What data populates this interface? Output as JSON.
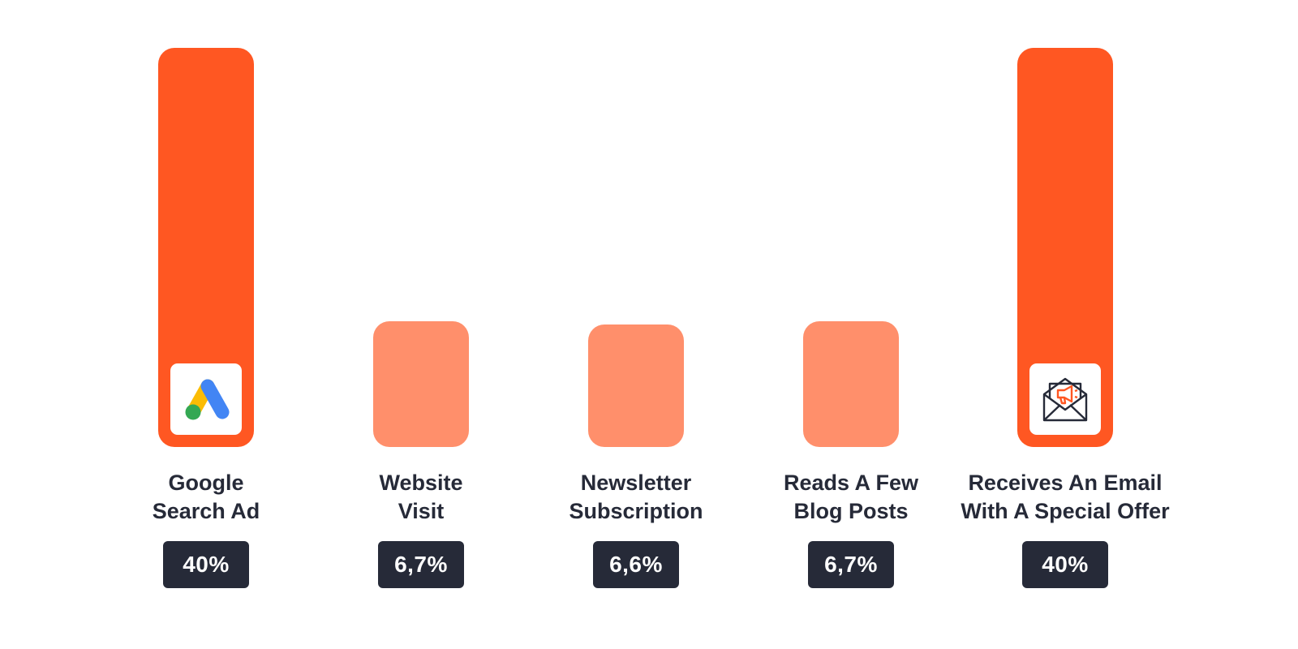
{
  "chart_data": {
    "type": "bar",
    "categories": [
      [
        "Google",
        "Search Ad"
      ],
      [
        "Website",
        "Visit"
      ],
      [
        "Newsletter",
        "Subscription"
      ],
      [
        "Reads A Few",
        "Blog Posts"
      ],
      [
        "Receives An Email",
        "With A Special Offer"
      ]
    ],
    "values": [
      40,
      6.7,
      6.6,
      6.7,
      40
    ],
    "value_labels": [
      "40%",
      "6,7%",
      "6,6%",
      "6,7%",
      "40%"
    ],
    "ylim": [
      0,
      40
    ],
    "grid": false,
    "legend": "none",
    "icons": [
      "google-ads-logo",
      "",
      "",
      "",
      "email-megaphone-icon"
    ],
    "colors": {
      "highlight": "#ff5722",
      "muted": "#ff8f6b",
      "label_text": "#262a38",
      "badge_bg": "#262a38",
      "badge_text": "#ffffff"
    },
    "highlighted": [
      true,
      false,
      false,
      false,
      true
    ]
  }
}
